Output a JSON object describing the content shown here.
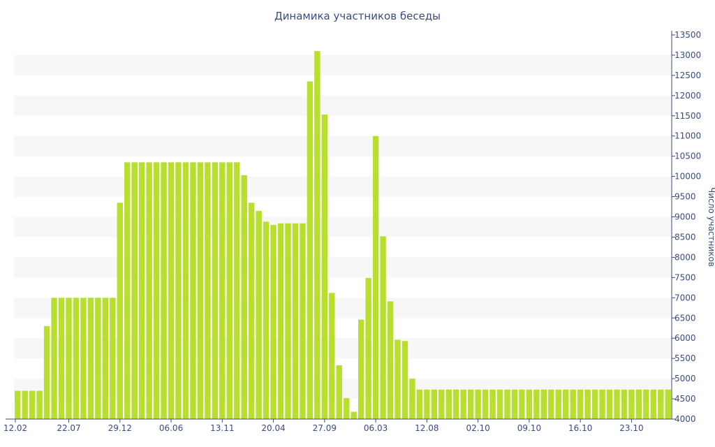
{
  "chart_data": {
    "type": "bar",
    "title": "Динамика участников беседы",
    "xlabel": "",
    "ylabel": "Число участников",
    "ylim": [
      4000,
      13500
    ],
    "ytick_step": 500,
    "grid": "horizontal bands",
    "y_axis_position": "right",
    "legend": "none",
    "bar_color": "#b8de2e",
    "band_color": "#f7f7f7",
    "text_color": "#3c4a82",
    "x_tick_labels": [
      "12.02",
      "22.07",
      "29.12",
      "06.06",
      "13.11",
      "20.04",
      "27.09",
      "06.03",
      "12.08",
      "02.10",
      "09.10",
      "16.10",
      "23.10"
    ],
    "x_tick_indices": [
      0,
      7,
      14,
      21,
      28,
      35,
      42,
      49,
      56,
      63,
      70,
      77,
      84
    ],
    "values": [
      4700,
      4700,
      4700,
      4700,
      6300,
      7000,
      7000,
      7000,
      7000,
      7000,
      7000,
      7000,
      7000,
      7000,
      9350,
      10350,
      10350,
      10350,
      10350,
      10350,
      10350,
      10350,
      10350,
      10350,
      10350,
      10350,
      10350,
      10350,
      10350,
      10350,
      10350,
      10030,
      9350,
      9150,
      8880,
      8800,
      8840,
      8840,
      8840,
      8840,
      12350,
      13100,
      11530,
      7120,
      5330,
      4520,
      4180,
      6460,
      7490,
      11000,
      8520,
      6910,
      5960,
      5930,
      5000,
      4730,
      4730,
      4730,
      4730,
      4730,
      4730,
      4730,
      4730,
      4730,
      4730,
      4730,
      4730,
      4730,
      4730,
      4730,
      4730,
      4730,
      4730,
      4730,
      4730,
      4730,
      4730,
      4730,
      4730,
      4730,
      4730,
      4730,
      4730,
      4730,
      4730,
      4730,
      4730,
      4730,
      4730,
      4730
    ]
  }
}
